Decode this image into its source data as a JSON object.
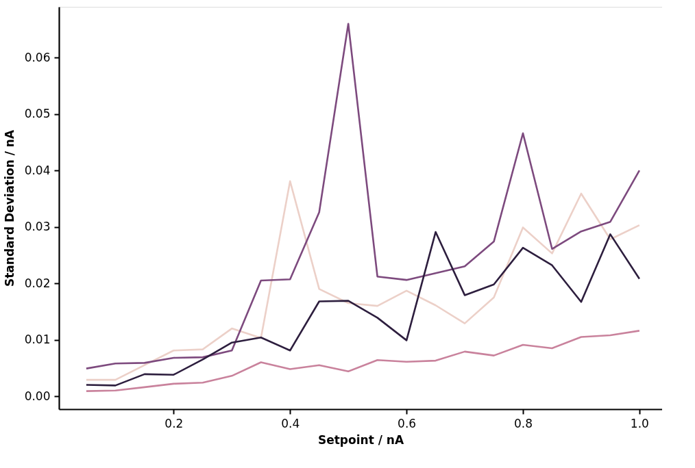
{
  "chart_data": {
    "type": "line",
    "xlabel": "Setpoint / nA",
    "ylabel": "Standard Deviation / nA",
    "x": [
      0.05,
      0.1,
      0.15,
      0.2,
      0.25,
      0.3,
      0.35,
      0.4,
      0.45,
      0.5,
      0.55,
      0.6,
      0.65,
      0.7,
      0.75,
      0.8,
      0.85,
      0.9,
      0.95,
      1.0
    ],
    "series": [
      {
        "color": "#ecd0c8",
        "values": [
          0.0029,
          0.0029,
          0.0055,
          0.0081,
          0.0083,
          0.012,
          0.0103,
          0.0381,
          0.019,
          0.0165,
          0.016,
          0.0187,
          0.0161,
          0.0129,
          0.0175,
          0.0299,
          0.0253,
          0.0359,
          0.0278,
          0.0303
        ]
      },
      {
        "color": "#c9829c",
        "values": [
          0.0009,
          0.001,
          0.0016,
          0.0022,
          0.0024,
          0.0036,
          0.006,
          0.0048,
          0.0055,
          0.0044,
          0.0064,
          0.0061,
          0.0063,
          0.0079,
          0.0072,
          0.0091,
          0.0085,
          0.0105,
          0.0108,
          0.0116
        ]
      },
      {
        "color": "#7d4a7e",
        "values": [
          0.0049,
          0.0058,
          0.0059,
          0.0068,
          0.0069,
          0.0081,
          0.0205,
          0.0207,
          0.0326,
          0.066,
          0.0212,
          0.0206,
          0.0218,
          0.023,
          0.0274,
          0.0466,
          0.0261,
          0.0292,
          0.0309,
          0.04
        ]
      },
      {
        "color": "#2d1e3e",
        "values": [
          0.002,
          0.0019,
          0.0039,
          0.0038,
          0.0065,
          0.0095,
          0.0104,
          0.0081,
          0.0168,
          0.0169,
          0.0139,
          0.0099,
          0.0291,
          0.0179,
          0.0198,
          0.0263,
          0.0232,
          0.0167,
          0.0287,
          0.0208
        ]
      }
    ],
    "xlim": [
      0.003,
      1.039
    ],
    "ylim": [
      -0.0023,
      0.069
    ],
    "xticks": [
      0.2,
      0.4,
      0.6,
      0.8,
      {
        "value": 1.0,
        "label": "1.0"
      }
    ],
    "yticks": [
      {
        "value": 0,
        "label": "0.00"
      },
      0.01,
      0.02,
      0.03,
      0.04,
      0.05,
      0.06
    ],
    "grid": false,
    "legend": false
  }
}
